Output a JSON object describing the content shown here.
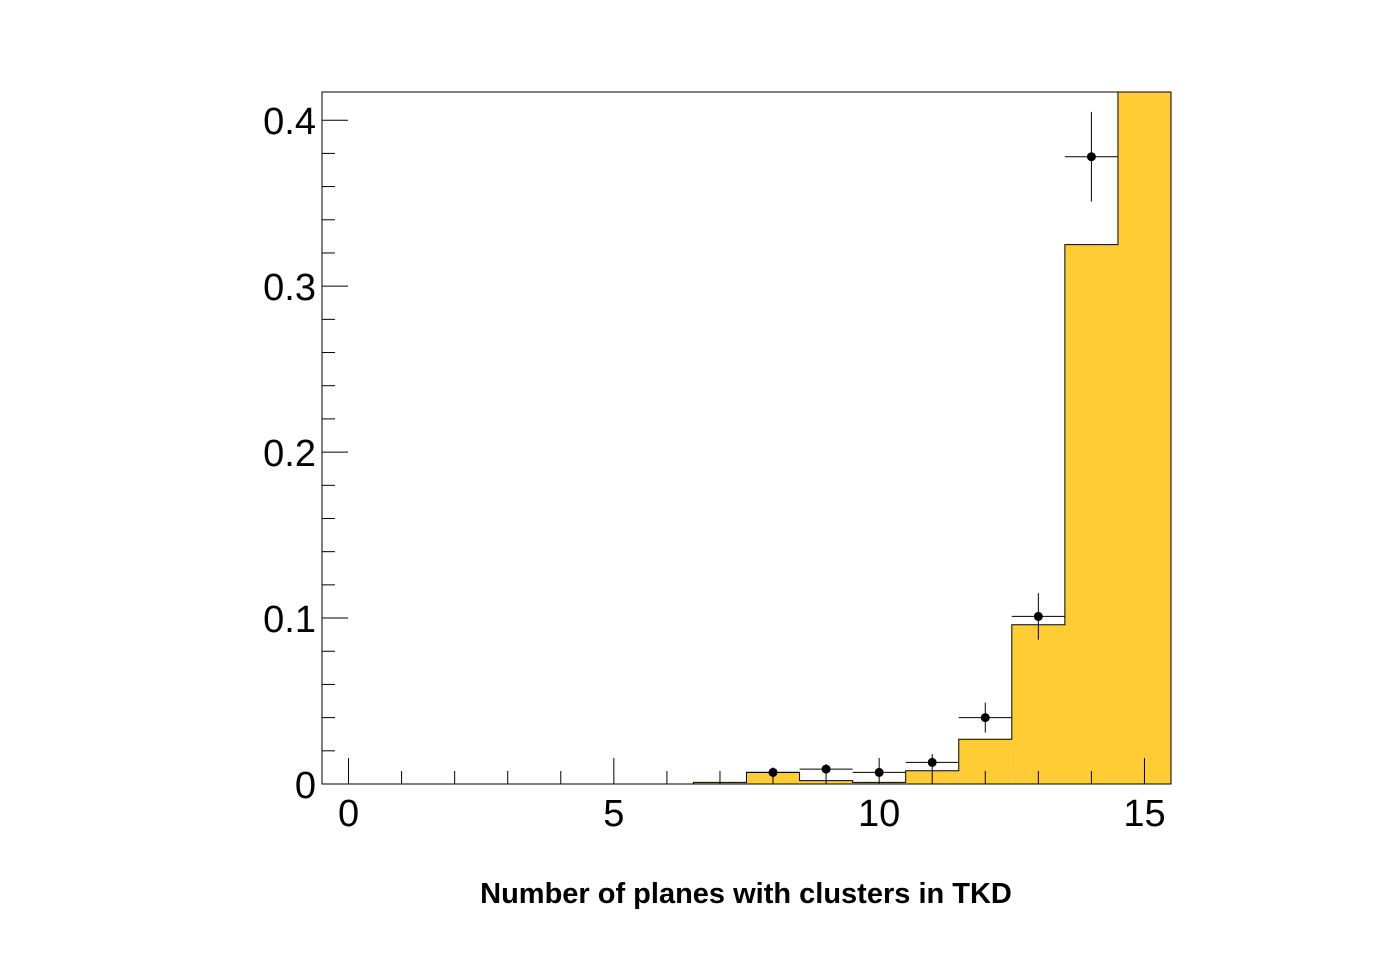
{
  "chart_data": {
    "type": "bar",
    "title": "",
    "xlabel": "Number of planes with clusters in TKD",
    "ylabel": "",
    "xlim": [
      -0.5,
      15.5
    ],
    "ylim": [
      0,
      0.417
    ],
    "x_ticks": [
      0,
      5,
      10,
      15
    ],
    "x_tick_labels": [
      "0",
      "5",
      "10",
      "15"
    ],
    "y_ticks": [
      0,
      0.1,
      0.2,
      0.3,
      0.4
    ],
    "y_tick_labels": [
      "0",
      "0.1",
      "0.2",
      "0.3",
      "0.4"
    ],
    "grid": false,
    "legend": "none",
    "series": [
      {
        "kind": "histogram",
        "color": "#ffcc33",
        "bin_width": 1,
        "x": [
          7,
          8,
          9,
          10,
          11,
          12,
          13,
          14,
          15
        ],
        "values": [
          0.001,
          0.007,
          0.002,
          0.001,
          0.008,
          0.027,
          0.096,
          0.325,
          0.417
        ]
      },
      {
        "kind": "points-with-errors",
        "color": "#000000",
        "x": [
          8,
          9,
          10,
          11,
          12,
          13,
          14
        ],
        "values": [
          0.007,
          0.009,
          0.007,
          0.013,
          0.04,
          0.101,
          0.378
        ],
        "y_errors": [
          0.003,
          0.003,
          0.003,
          0.005,
          0.009,
          0.014,
          0.027
        ],
        "x_errors": [
          0.5,
          0.5,
          0.5,
          0.5,
          0.5,
          0.5,
          0.5
        ]
      }
    ]
  }
}
